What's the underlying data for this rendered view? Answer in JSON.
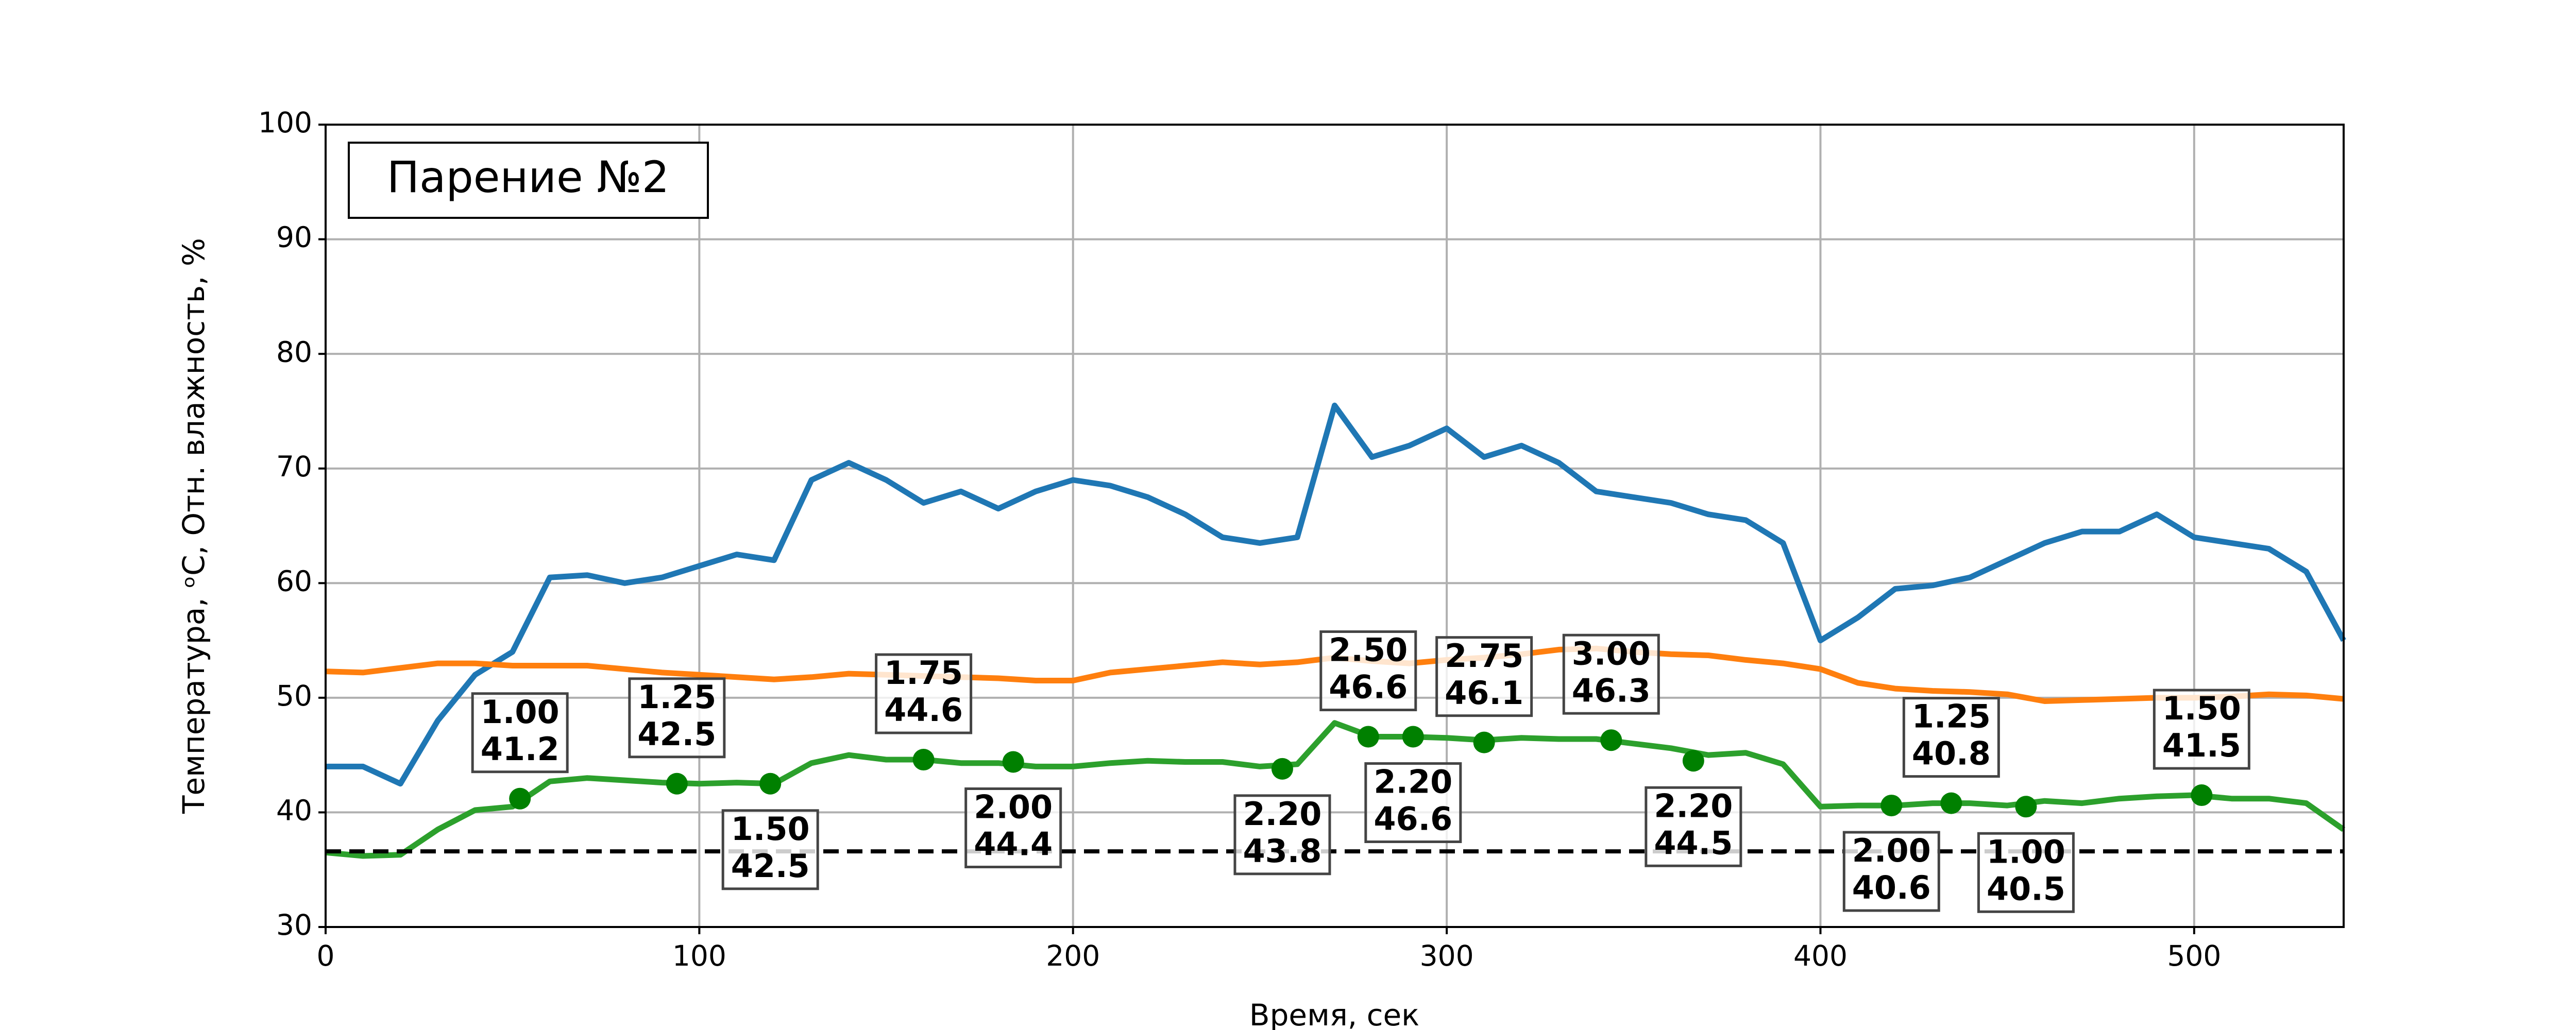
{
  "chart_data": {
    "type": "line",
    "title": "Парение №2",
    "xlabel": "Время, сек",
    "ylabel": "Температура, ᵒC, Отн. влажность, %",
    "x": [
      0,
      10,
      20,
      30,
      40,
      50,
      60,
      70,
      80,
      90,
      100,
      110,
      120,
      130,
      140,
      150,
      160,
      170,
      180,
      190,
      200,
      210,
      220,
      230,
      240,
      250,
      260,
      270,
      280,
      290,
      300,
      310,
      320,
      330,
      340,
      350,
      360,
      370,
      380,
      390,
      400,
      410,
      420,
      430,
      440,
      450,
      460,
      470,
      480,
      490,
      500,
      510,
      520,
      530,
      540
    ],
    "series": [
      {
        "color": "#1f77b4",
        "values": [
          44,
          44,
          42.5,
          48,
          52,
          54,
          60.5,
          60.7,
          60,
          60.5,
          61.5,
          62.5,
          62,
          69,
          70.5,
          69,
          67,
          68,
          66.5,
          68,
          69,
          68.5,
          67.5,
          66,
          64,
          63.5,
          64,
          75.5,
          71,
          72,
          73.5,
          71,
          72,
          70.5,
          68,
          67.5,
          67,
          66,
          65.5,
          63.5,
          55,
          57,
          59.5,
          59.8,
          60.5,
          62,
          63.5,
          64.5,
          64.5,
          66,
          64,
          63.5,
          63,
          61,
          55
        ]
      },
      {
        "color": "#ff7f0e",
        "values": [
          52.3,
          52.2,
          52.6,
          53,
          53,
          52.8,
          52.8,
          52.8,
          52.5,
          52.2,
          52,
          51.8,
          51.6,
          51.8,
          52.1,
          52,
          51.9,
          51.8,
          51.7,
          51.5,
          51.5,
          52.2,
          52.5,
          52.8,
          53.1,
          52.9,
          53.1,
          53.5,
          53.2,
          53,
          53.3,
          53.5,
          53.8,
          54.2,
          54.3,
          54,
          53.8,
          53.7,
          53.3,
          53,
          52.5,
          51.3,
          50.8,
          50.6,
          50.5,
          50.3,
          49.7,
          49.8,
          49.9,
          50,
          50,
          50.1,
          50.3,
          50.2,
          49.9
        ]
      },
      {
        "color": "#2ca02c",
        "values": [
          36.5,
          36.2,
          36.3,
          38.5,
          40.2,
          40.5,
          42.7,
          43,
          42.8,
          42.6,
          42.5,
          42.6,
          42.5,
          44.3,
          45,
          44.6,
          44.6,
          44.3,
          44.3,
          44,
          44,
          44.3,
          44.5,
          44.4,
          44.4,
          44,
          44.2,
          47.8,
          46.6,
          46.6,
          46.5,
          46.3,
          46.5,
          46.4,
          46.4,
          46,
          45.6,
          45,
          45.2,
          44.2,
          40.5,
          40.6,
          40.6,
          40.8,
          40.8,
          40.6,
          41,
          40.8,
          41.2,
          41.4,
          41.5,
          41.2,
          41.2,
          40.8,
          38.5
        ]
      }
    ],
    "hline": {
      "value": 36.6,
      "color": "#000000",
      "dashed": true
    },
    "points_color": "#008000",
    "points": [
      {
        "x": 52,
        "y": 41.2,
        "label": "1.00"
      },
      {
        "x": 94,
        "y": 42.5,
        "label": "1.25"
      },
      {
        "x": 119,
        "y": 42.5,
        "label": "1.50"
      },
      {
        "x": 160,
        "y": 44.6,
        "label": "1.75"
      },
      {
        "x": 184,
        "y": 44.4,
        "label": "2.00"
      },
      {
        "x": 256,
        "y": 43.8,
        "label": "2.20"
      },
      {
        "x": 279,
        "y": 46.6,
        "label": "2.50"
      },
      {
        "x": 291,
        "y": 46.6,
        "label": "2.20"
      },
      {
        "x": 310,
        "y": 46.1,
        "label": "2.75"
      },
      {
        "x": 344,
        "y": 46.3,
        "label": "3.00"
      },
      {
        "x": 366,
        "y": 44.5,
        "label": "2.20"
      },
      {
        "x": 419,
        "y": 40.6,
        "label": "2.00"
      },
      {
        "x": 435,
        "y": 40.8,
        "label": "1.25"
      },
      {
        "x": 455,
        "y": 40.5,
        "label": "1.00"
      },
      {
        "x": 502,
        "y": 41.5,
        "label": "1.50"
      }
    ],
    "xlim": [
      0,
      540
    ],
    "xticks": [
      0,
      100,
      200,
      300,
      400,
      500
    ],
    "ylim": [
      30,
      100
    ],
    "yticks": [
      30,
      40,
      50,
      60,
      70,
      80,
      90,
      100
    ],
    "grid": true
  }
}
